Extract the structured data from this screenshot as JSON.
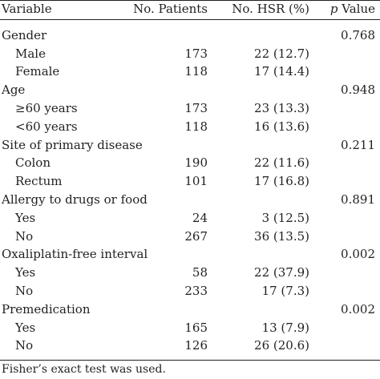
{
  "header": {
    "variable": "Variable",
    "patients": "No. Patients",
    "hsr": "No. HSR (%)",
    "pvalue_p": "p",
    "pvalue_rest": " Value"
  },
  "groups": [
    {
      "label": "Gender",
      "p": "0.768",
      "rows": [
        {
          "label": "Male",
          "patients": "173",
          "hsr": "22 (12.7)"
        },
        {
          "label": "Female",
          "patients": "118",
          "hsr": "17 (14.4)"
        }
      ]
    },
    {
      "label": "Age",
      "p": "0.948",
      "rows": [
        {
          "label": "≥60 years",
          "patients": "173",
          "hsr": "23 (13.3)"
        },
        {
          "label": "<60 years",
          "patients": "118",
          "hsr": "16 (13.6)"
        }
      ]
    },
    {
      "label": "Site of primary disease",
      "p": "0.211",
      "rows": [
        {
          "label": "Colon",
          "patients": "190",
          "hsr": "22 (11.6)"
        },
        {
          "label": "Rectum",
          "patients": "101",
          "hsr": "17 (16.8)"
        }
      ]
    },
    {
      "label": "Allergy to drugs or food",
      "p": "0.891",
      "rows": [
        {
          "label": "Yes",
          "patients": "24",
          "hsr": "3 (12.5)"
        },
        {
          "label": "No",
          "patients": "267",
          "hsr": "36 (13.5)"
        }
      ]
    },
    {
      "label": "Oxaliplatin-free interval",
      "p": "0.002",
      "rows": [
        {
          "label": "Yes",
          "patients": "58",
          "hsr": "22 (37.9)"
        },
        {
          "label": "No",
          "patients": "233",
          "hsr": "17 (7.3)"
        }
      ]
    },
    {
      "label": "Premedication",
      "p": "0.002",
      "rows": [
        {
          "label": "Yes",
          "patients": "165",
          "hsr": "13 (7.9)"
        },
        {
          "label": "No",
          "patients": "126",
          "hsr": "26 (20.6)"
        }
      ]
    }
  ],
  "footnote": "Fisher’s exact test was used."
}
